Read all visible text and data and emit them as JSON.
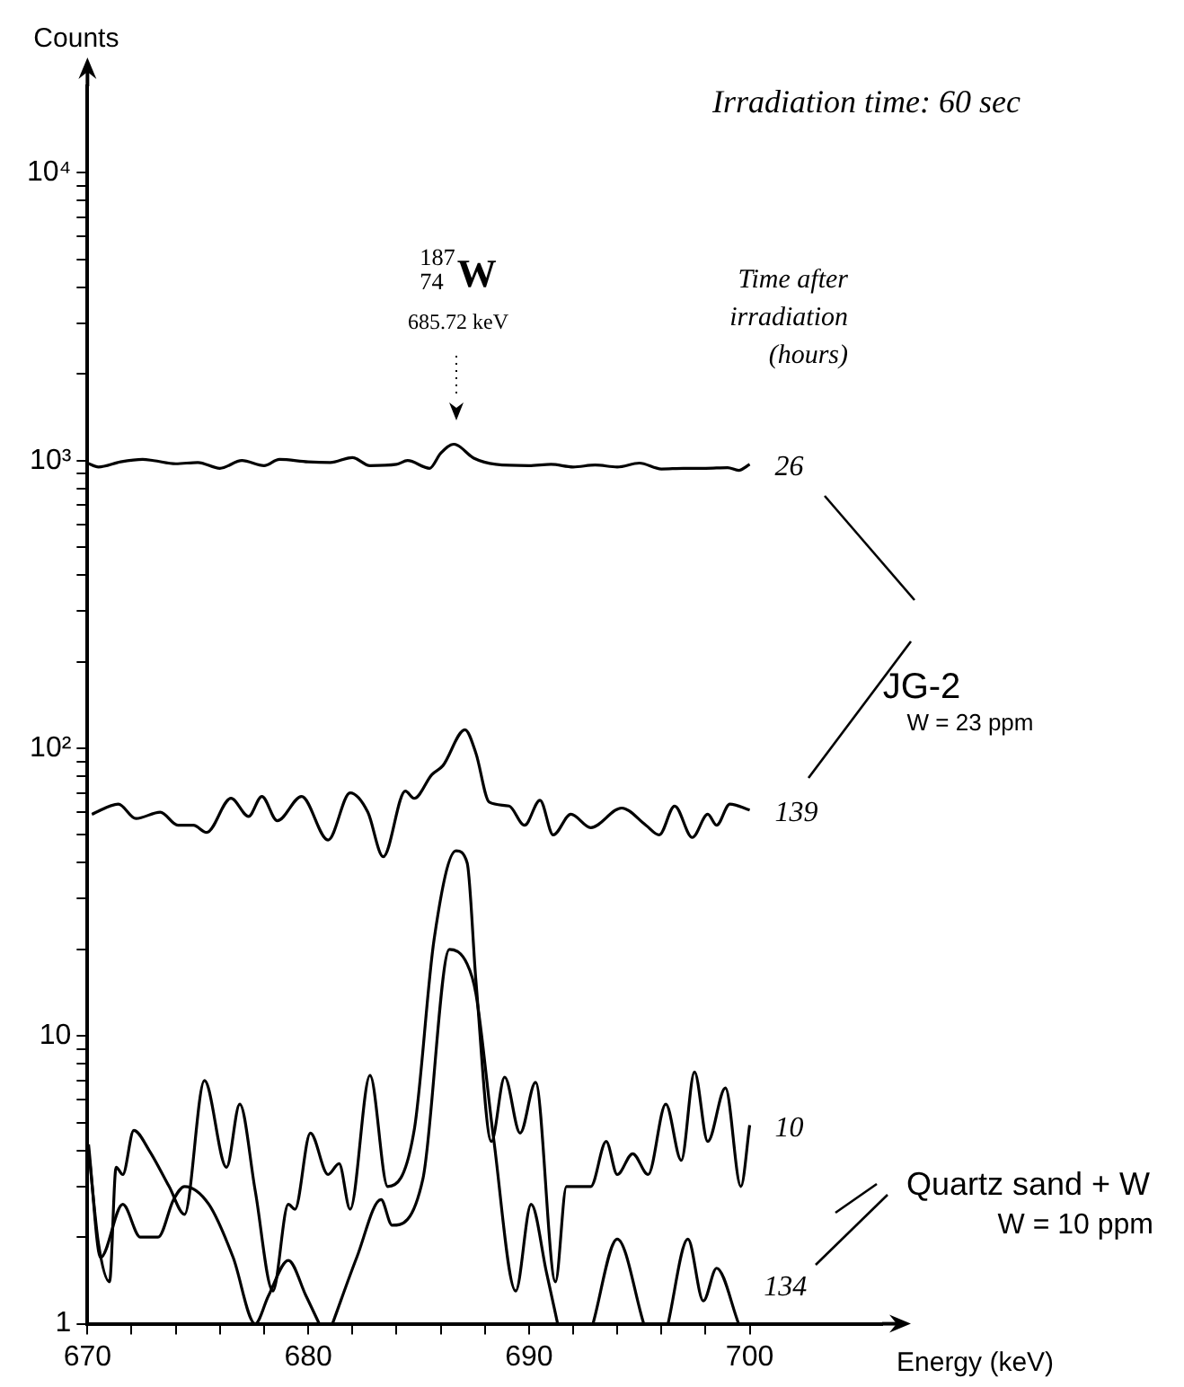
{
  "chart_data": {
    "type": "line",
    "xlabel": "Energy (keV)",
    "ylabel": "Counts",
    "annotations": [
      "Irradiation time: 60 sec",
      "$^{187}$$_{74}$W 685.72 keV",
      "Time after irradiation (hours)",
      "JG-2",
      "W = 23 ppm",
      "Quartz sand + W",
      "W = 10 ppm"
    ],
    "series": [
      {
        "name": "26",
        "color": "#000000",
        "x": [
          670,
          670.5,
          671.5,
          672.5,
          673,
          674,
          675,
          676,
          677,
          678,
          678.7,
          680,
          681,
          682,
          682.8,
          684,
          684.5,
          685.5,
          686,
          686.6,
          687.5,
          688.5,
          690,
          691,
          692,
          693,
          694,
          695,
          696,
          697,
          698,
          699,
          699.5,
          700
        ],
        "values": [
          980,
          950,
          990,
          1010,
          1000,
          975,
          985,
          940,
          1000,
          960,
          1010,
          990,
          985,
          1025,
          960,
          970,
          1000,
          940,
          1060,
          1140,
          1020,
          970,
          960,
          970,
          950,
          965,
          950,
          980,
          935,
          940,
          940,
          945,
          925,
          970
        ]
      },
      {
        "name": "139",
        "color": "#000000",
        "x": [
          670.2,
          671.4,
          672.2,
          673.3,
          674.1,
          674.8,
          675.4,
          676.5,
          677.3,
          677.9,
          678.6,
          679.7,
          680.9,
          681.9,
          682.7,
          683.4,
          684.4,
          684.8,
          685.6,
          686.1,
          687.1,
          687.6,
          688.2,
          689.1,
          689.8,
          690.5,
          691.1,
          691.9,
          692.8,
          694.2,
          695.3,
          695.9,
          696.6,
          697.4,
          698.1,
          698.5,
          699.1,
          700
        ],
        "values": [
          59,
          64,
          57,
          60,
          54,
          54,
          51,
          67,
          58,
          68,
          56,
          68,
          48,
          70,
          60,
          42,
          71,
          67,
          81,
          87,
          116,
          96,
          65,
          63,
          54,
          66,
          50,
          59,
          53,
          62,
          54,
          50,
          63,
          49,
          59,
          54,
          64,
          61
        ]
      },
      {
        "name": "10",
        "color": "#000000",
        "x": [
          670.1,
          670.5,
          671,
          671.3,
          671.6,
          672.1,
          672.8,
          673.7,
          674.4,
          675.3,
          676.3,
          676.9,
          677.6,
          678.4,
          679.1,
          679.4,
          680.1,
          680.9,
          681.4,
          681.9,
          682.8,
          683.6,
          684.8,
          685.7,
          686.7,
          687.2,
          687.6,
          688.3,
          688.9,
          689.6,
          690.3,
          691.2,
          691.7,
          692.8,
          693.5,
          694,
          694.7,
          695.4,
          696.2,
          696.9,
          697.5,
          698.1,
          698.9,
          699.6,
          700
        ],
        "values": [
          3.7,
          1.9,
          1.4,
          3.5,
          3.3,
          4.7,
          4,
          3,
          2.4,
          7,
          3.5,
          5.8,
          2.9,
          1.3,
          2.6,
          2.5,
          4.6,
          3.3,
          3.6,
          2.5,
          7.3,
          3,
          4.7,
          21.6,
          44,
          40,
          15.5,
          4.3,
          7.2,
          4.6,
          6.9,
          1.4,
          3,
          3,
          4.3,
          3.3,
          3.9,
          3.3,
          5.8,
          3.7,
          7.5,
          4.3,
          6.6,
          3,
          4.9
        ]
      },
      {
        "name": "134",
        "color": "#000000",
        "x": [
          670.05,
          670.6,
          671.6,
          672.4,
          673.2,
          673.9,
          674.4,
          675.5,
          676.6,
          677.6,
          678.2,
          679.1,
          679.9,
          680.5,
          681,
          681.1,
          682.2,
          683.3,
          683.8,
          685.2,
          686.4,
          687.2,
          687.6,
          688.4,
          689.4,
          690.1,
          690.8,
          691.3,
          692,
          692.9,
          694,
          695.2,
          695.8,
          696.3,
          697.2,
          697.9,
          698.5,
          699.5
        ],
        "values": [
          4.2,
          1.7,
          2.6,
          2,
          2,
          2.7,
          3,
          2.6,
          1.7,
          1,
          1.25,
          1.66,
          1.25,
          1,
          null,
          1,
          1.7,
          2.7,
          2.2,
          3.2,
          20,
          17.8,
          14,
          4.4,
          1.3,
          2.6,
          1.5,
          1,
          null,
          1,
          1.97,
          1,
          null,
          1,
          1.97,
          1.2,
          1.56,
          1
        ]
      }
    ],
    "xlim": [
      670,
      706
    ],
    "xticks": [
      670,
      {
        "value": 672,
        "label": null
      },
      {
        "value": 674,
        "label": null
      },
      {
        "value": 676,
        "label": null
      },
      {
        "value": 678,
        "label": null
      },
      680,
      {
        "value": 682,
        "label": null
      },
      {
        "value": 684,
        "label": null
      },
      {
        "value": 686,
        "label": null
      },
      {
        "value": 688,
        "label": null
      },
      690,
      {
        "value": 692,
        "label": null
      },
      {
        "value": 694,
        "label": null
      },
      {
        "value": 696,
        "label": null
      },
      {
        "value": 698,
        "label": null
      },
      700
    ],
    "ylim": [
      1,
      20000
    ],
    "yticks": [
      1,
      {
        "value": 2,
        "label": null
      },
      {
        "value": 3,
        "label": null
      },
      {
        "value": 4,
        "label": null
      },
      {
        "value": 5,
        "label": null
      },
      {
        "value": 6,
        "label": null
      },
      {
        "value": 7,
        "label": null
      },
      {
        "value": 8,
        "label": null
      },
      {
        "value": 9,
        "label": null
      },
      10,
      {
        "value": 20,
        "label": null
      },
      {
        "value": 30,
        "label": null
      },
      {
        "value": 40,
        "label": null
      },
      {
        "value": 50,
        "label": null
      },
      {
        "value": 60,
        "label": null
      },
      {
        "value": 70,
        "label": null
      },
      {
        "value": 80,
        "label": null
      },
      {
        "value": 90,
        "label": null
      },
      {
        "value": 100,
        "label": "10²"
      },
      {
        "value": 200,
        "label": null
      },
      {
        "value": 300,
        "label": null
      },
      {
        "value": 400,
        "label": null
      },
      {
        "value": 500,
        "label": null
      },
      {
        "value": 600,
        "label": null
      },
      {
        "value": 700,
        "label": null
      },
      {
        "value": 800,
        "label": null
      },
      {
        "value": 900,
        "label": null
      },
      {
        "value": 1000,
        "label": "10³"
      },
      {
        "value": 2000,
        "label": null
      },
      {
        "value": 3000,
        "label": null
      },
      {
        "value": 4000,
        "label": null
      },
      {
        "value": 5000,
        "label": null
      },
      {
        "value": 6000,
        "label": null
      },
      {
        "value": 7000,
        "label": null
      },
      {
        "value": 8000,
        "label": null
      },
      {
        "value": 9000,
        "label": null
      },
      {
        "value": 10000,
        "label": "10⁴"
      }
    ],
    "log": "y",
    "grid": false,
    "legend": false,
    "marker": "none",
    "line_style": "solid"
  }
}
